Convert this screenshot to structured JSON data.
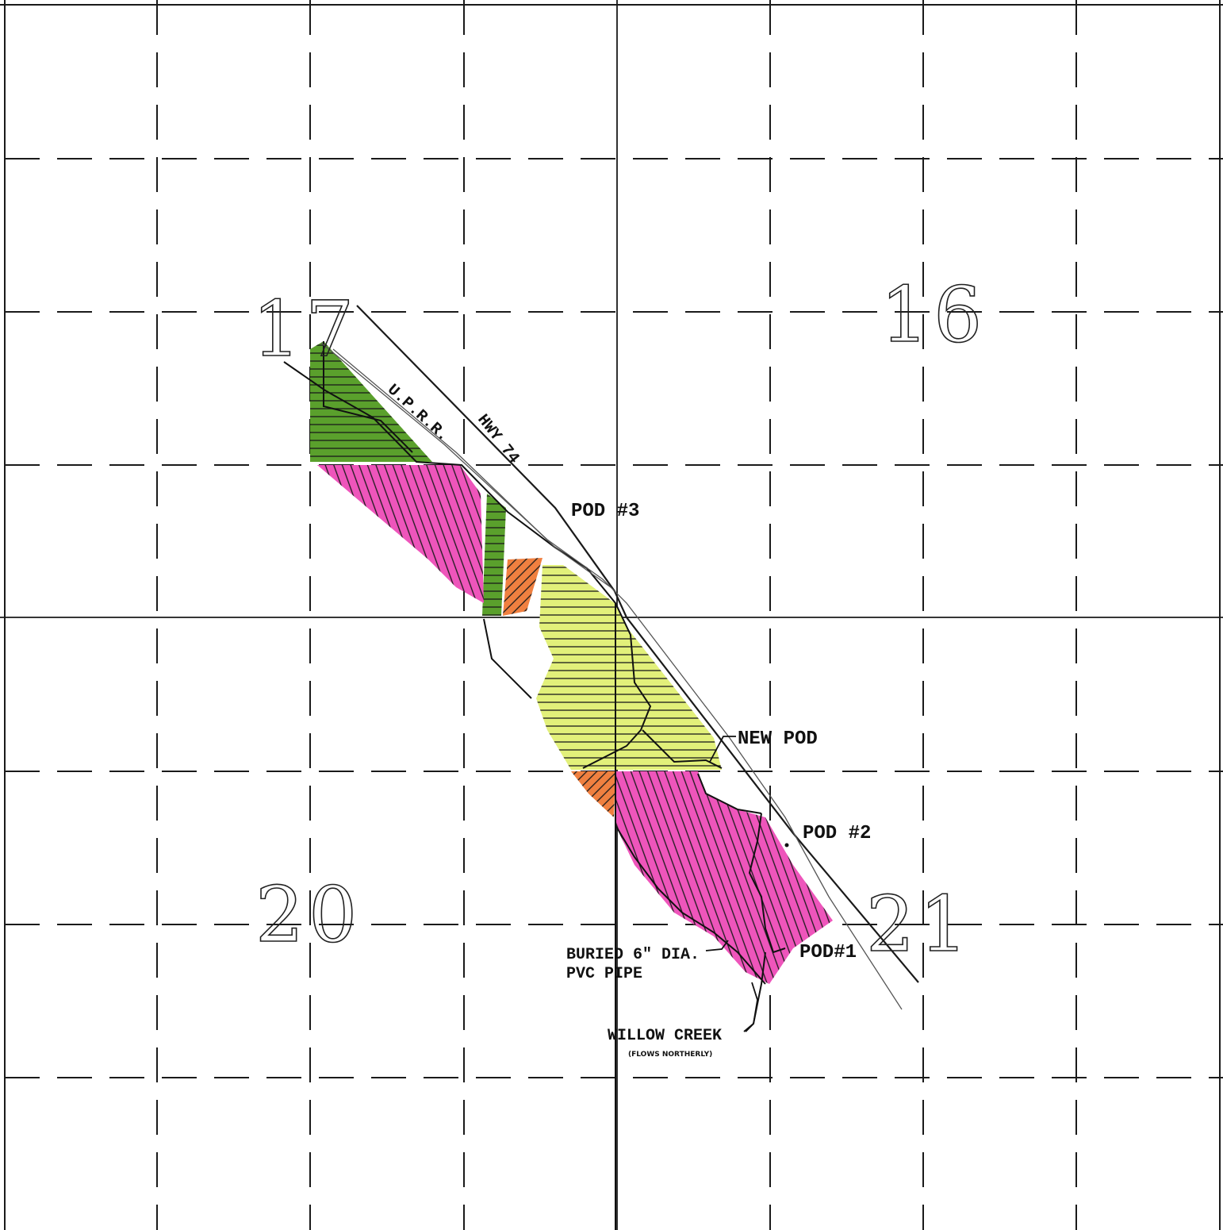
{
  "sections": {
    "nw": "17",
    "ne": "16",
    "sw": "20",
    "se": "21"
  },
  "labels": {
    "railroad": "U.P.R.R.",
    "highway": "HWY 74",
    "pod3": "POD #3",
    "new_pod": "NEW POD",
    "pod2": "POD #2",
    "pod1": "POD#1",
    "pipe_line1": "BURIED 6\" DIA.",
    "pipe_line2": "PVC PIPE",
    "creek": "WILLOW CREEK",
    "creek_note": "(FLOWS NORTHERLY)"
  },
  "colors": {
    "green": "#5aa02c",
    "magenta": "#ee55bb",
    "orange": "#f08040",
    "yellow": "#e2f07a",
    "hatch": "#1a1a1a",
    "grid": "#1a1a1a"
  }
}
